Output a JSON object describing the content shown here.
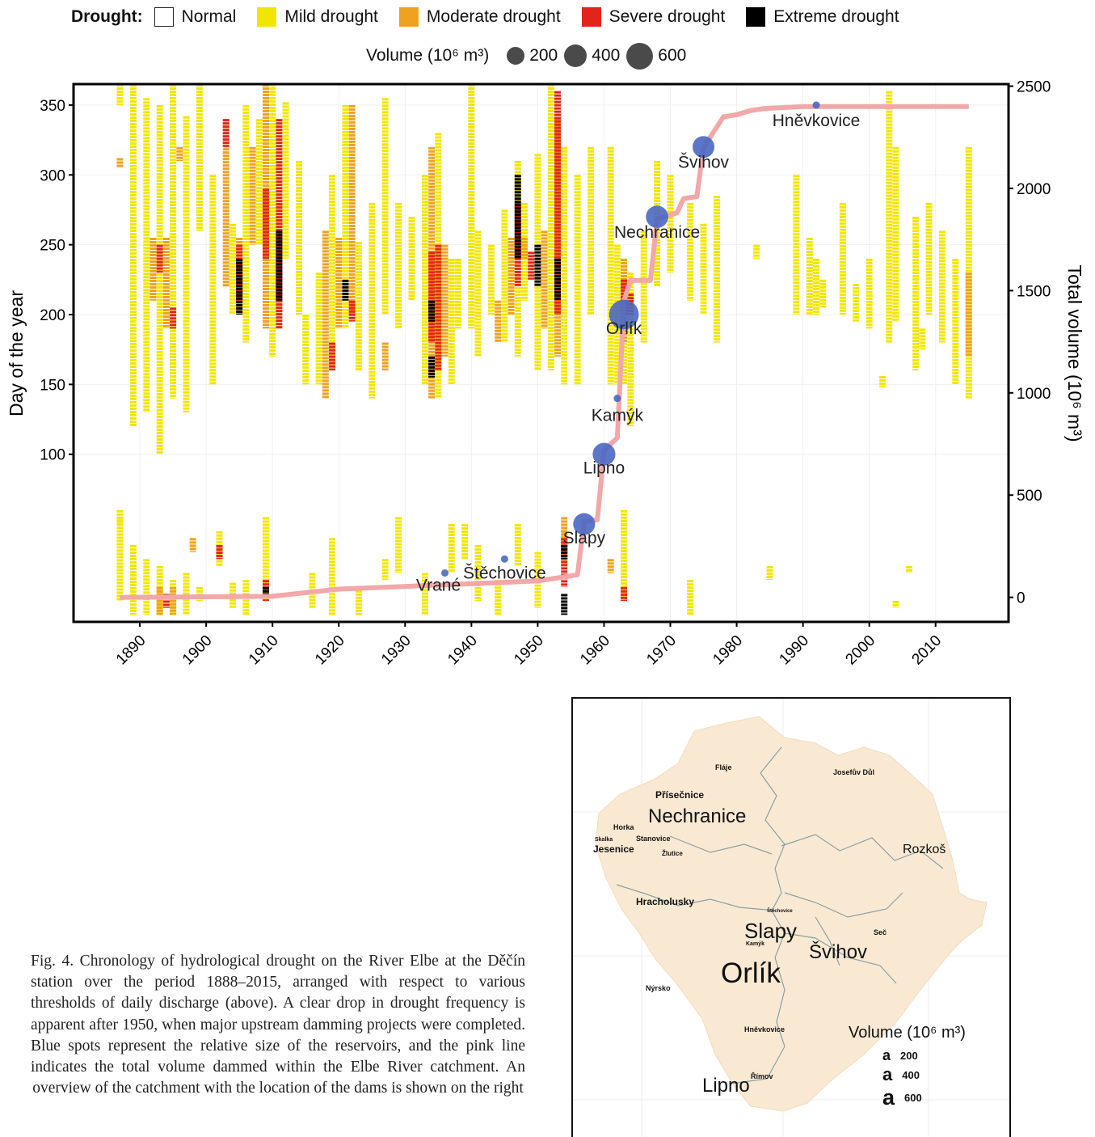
{
  "legend": {
    "title": "Drought:",
    "items": [
      {
        "label": "Normal",
        "color": "#ffffff"
      },
      {
        "label": "Mild drought",
        "color": "#f2e500"
      },
      {
        "label": "Moderate drought",
        "color": "#f0a11f"
      },
      {
        "label": "Severe drought",
        "color": "#e3241b"
      },
      {
        "label": "Extreme drought",
        "color": "#000000"
      }
    ],
    "volume_title": "Volume (10⁶ m³)",
    "volume_sizes": [
      "200",
      "400",
      "600"
    ]
  },
  "chart_data": {
    "type": "heatmap",
    "title": "",
    "xlabel": "",
    "ylabel": "Day of the year",
    "y2label": "Total volume (10⁶ m³)",
    "xlim": [
      1880,
      2021
    ],
    "ylim": [
      -20,
      365
    ],
    "y2lim": [
      -120,
      2510
    ],
    "x_ticks": [
      1890,
      1900,
      1910,
      1920,
      1930,
      1940,
      1950,
      1960,
      1970,
      1980,
      1990,
      2000,
      2010
    ],
    "y_ticks": [
      100,
      150,
      200,
      250,
      300,
      350
    ],
    "y2_ticks": [
      0,
      500,
      1000,
      1500,
      2000,
      2500
    ],
    "colors": {
      "mild": "#f2e500",
      "moderate": "#f0a11f",
      "severe": "#e3241b",
      "extreme": "#000000",
      "line": "#f2a7a8",
      "dam": "#4a67c2"
    },
    "drought_bars": [
      [
        1887,
        350,
        365,
        "mild"
      ],
      [
        1887,
        305,
        312,
        "moderate"
      ],
      [
        1887,
        50,
        60,
        "mild"
      ],
      [
        1889,
        120,
        365,
        "mild"
      ],
      [
        1891,
        130,
        355,
        "mild"
      ],
      [
        1893,
        100,
        350,
        "mild"
      ],
      [
        1895,
        140,
        365,
        "mild"
      ],
      [
        1897,
        130,
        342,
        "mild"
      ],
      [
        1899,
        260,
        365,
        "mild"
      ],
      [
        1901,
        150,
        300,
        "mild"
      ],
      [
        1904,
        200,
        265,
        "mild"
      ],
      [
        1906,
        180,
        350,
        "mild"
      ],
      [
        1908,
        250,
        340,
        "mild"
      ],
      [
        1910,
        170,
        365,
        "mild"
      ],
      [
        1912,
        240,
        352,
        "mild"
      ],
      [
        1914,
        200,
        310,
        "mild"
      ],
      [
        1915,
        150,
        200,
        "mild"
      ],
      [
        1917,
        150,
        230,
        "mild"
      ],
      [
        1919,
        160,
        300,
        "mild"
      ],
      [
        1921,
        190,
        350,
        "mild"
      ],
      [
        1923,
        160,
        252,
        "mild"
      ],
      [
        1925,
        140,
        280,
        "mild"
      ],
      [
        1927,
        200,
        355,
        "mild"
      ],
      [
        1929,
        190,
        280,
        "mild"
      ],
      [
        1931,
        210,
        270,
        "mild"
      ],
      [
        1933,
        150,
        300,
        "mild"
      ],
      [
        1935,
        140,
        330,
        "mild"
      ],
      [
        1937,
        150,
        240,
        "mild"
      ],
      [
        1938,
        190,
        240,
        "mild"
      ],
      [
        1940,
        190,
        365,
        "mild"
      ],
      [
        1941,
        170,
        260,
        "mild"
      ],
      [
        1943,
        200,
        250,
        "mild"
      ],
      [
        1945,
        180,
        275,
        "mild"
      ],
      [
        1947,
        170,
        310,
        "mild"
      ],
      [
        1948,
        210,
        280,
        "mild"
      ],
      [
        1950,
        160,
        315,
        "mild"
      ],
      [
        1952,
        160,
        365,
        "mild"
      ],
      [
        1954,
        150,
        320,
        "mild"
      ],
      [
        1956,
        150,
        300,
        "mild"
      ],
      [
        1958,
        200,
        320,
        "mild"
      ],
      [
        1961,
        150,
        320,
        "mild"
      ],
      [
        1962,
        150,
        250,
        "mild"
      ],
      [
        1963,
        150,
        240,
        "mild"
      ],
      [
        1964,
        120,
        230,
        "mild"
      ],
      [
        1966,
        180,
        260,
        "mild"
      ],
      [
        1968,
        220,
        310,
        "mild"
      ],
      [
        1970,
        230,
        300,
        "mild"
      ],
      [
        1973,
        210,
        280,
        "mild"
      ],
      [
        1975,
        200,
        265,
        "mild"
      ],
      [
        1977,
        180,
        285,
        "mild"
      ],
      [
        1983,
        240,
        250,
        "mild"
      ],
      [
        1989,
        200,
        300,
        "mild"
      ],
      [
        1991,
        200,
        255,
        "mild"
      ],
      [
        1992,
        200,
        240,
        "mild"
      ],
      [
        1993,
        205,
        225,
        "mild"
      ],
      [
        1996,
        200,
        280,
        "mild"
      ],
      [
        1998,
        195,
        222,
        "mild"
      ],
      [
        2000,
        190,
        240,
        "mild"
      ],
      [
        2003,
        180,
        360,
        "mild"
      ],
      [
        2004,
        195,
        320,
        "mild"
      ],
      [
        2007,
        160,
        270,
        "mild"
      ],
      [
        2009,
        200,
        280,
        "mild"
      ],
      [
        2011,
        180,
        260,
        "mild"
      ],
      [
        2013,
        150,
        240,
        "mild"
      ],
      [
        2015,
        140,
        320,
        "mild"
      ],
      [
        2002,
        148,
        156,
        "mild"
      ],
      [
        2008,
        175,
        190,
        "mild"
      ],
      [
        1892,
        210,
        255,
        "moderate"
      ],
      [
        1894,
        190,
        255,
        "moderate"
      ],
      [
        1896,
        310,
        320,
        "moderate"
      ],
      [
        1903,
        220,
        340,
        "moderate"
      ],
      [
        1905,
        200,
        255,
        "moderate"
      ],
      [
        1907,
        250,
        320,
        "moderate"
      ],
      [
        1909,
        190,
        365,
        "moderate"
      ],
      [
        1911,
        200,
        280,
        "moderate"
      ],
      [
        1918,
        140,
        260,
        "moderate"
      ],
      [
        1920,
        190,
        255,
        "moderate"
      ],
      [
        1922,
        200,
        350,
        "moderate"
      ],
      [
        1927,
        160,
        180,
        "moderate"
      ],
      [
        1934,
        140,
        320,
        "moderate"
      ],
      [
        1936,
        170,
        250,
        "moderate"
      ],
      [
        1944,
        180,
        210,
        "moderate"
      ],
      [
        1946,
        200,
        255,
        "moderate"
      ],
      [
        1948,
        240,
        255,
        "moderate"
      ],
      [
        1951,
        190,
        260,
        "moderate"
      ],
      [
        1953,
        170,
        340,
        "moderate"
      ],
      [
        1963,
        180,
        240,
        "moderate"
      ],
      [
        2015,
        170,
        230,
        "moderate"
      ],
      [
        1893,
        230,
        250,
        "severe"
      ],
      [
        1895,
        190,
        205,
        "severe"
      ],
      [
        1903,
        320,
        340,
        "severe"
      ],
      [
        1905,
        210,
        250,
        "severe"
      ],
      [
        1909,
        240,
        290,
        "severe"
      ],
      [
        1911,
        190,
        340,
        "severe"
      ],
      [
        1919,
        160,
        180,
        "severe"
      ],
      [
        1922,
        195,
        210,
        "severe"
      ],
      [
        1934,
        180,
        245,
        "severe"
      ],
      [
        1935,
        160,
        250,
        "severe"
      ],
      [
        1947,
        220,
        280,
        "severe"
      ],
      [
        1949,
        225,
        245,
        "severe"
      ],
      [
        1953,
        200,
        360,
        "severe"
      ],
      [
        1963,
        200,
        225,
        "severe"
      ],
      [
        1964,
        200,
        215,
        "severe"
      ],
      [
        1905,
        200,
        240,
        "extreme"
      ],
      [
        1911,
        210,
        260,
        "extreme"
      ],
      [
        1921,
        210,
        225,
        "extreme"
      ],
      [
        1934,
        195,
        210,
        "extreme"
      ],
      [
        1934,
        155,
        170,
        "extreme"
      ],
      [
        1947,
        240,
        300,
        "extreme"
      ],
      [
        1950,
        220,
        250,
        "extreme"
      ],
      [
        1953,
        210,
        240,
        "extreme"
      ],
      [
        1887,
        -5,
        55,
        "mild"
      ],
      [
        1889,
        -15,
        35,
        "mild"
      ],
      [
        1891,
        -15,
        25,
        "mild"
      ],
      [
        1893,
        -15,
        20,
        "mild"
      ],
      [
        1895,
        -15,
        10,
        "mild"
      ],
      [
        1897,
        -15,
        15,
        "mild"
      ],
      [
        1899,
        -5,
        5,
        "mild"
      ],
      [
        1902,
        20,
        45,
        "mild"
      ],
      [
        1904,
        -10,
        8,
        "mild"
      ],
      [
        1906,
        -15,
        10,
        "mild"
      ],
      [
        1909,
        -5,
        55,
        "mild"
      ],
      [
        1916,
        -10,
        15,
        "mild"
      ],
      [
        1919,
        -15,
        40,
        "mild"
      ],
      [
        1923,
        -15,
        5,
        "mild"
      ],
      [
        1927,
        10,
        25,
        "mild"
      ],
      [
        1929,
        15,
        55,
        "mild"
      ],
      [
        1933,
        -15,
        15,
        "mild"
      ],
      [
        1937,
        15,
        50,
        "mild"
      ],
      [
        1939,
        25,
        50,
        "mild"
      ],
      [
        1941,
        -5,
        35,
        "mild"
      ],
      [
        1944,
        -15,
        10,
        "mild"
      ],
      [
        1947,
        20,
        50,
        "mild"
      ],
      [
        1950,
        -10,
        30,
        "mild"
      ],
      [
        1954,
        20,
        45,
        "mild"
      ],
      [
        1963,
        -5,
        50,
        "mild"
      ],
      [
        1973,
        -15,
        10,
        "mild"
      ],
      [
        1985,
        10,
        20,
        "mild"
      ],
      [
        2004,
        -10,
        -5,
        "mild"
      ],
      [
        2006,
        15,
        20,
        "mild"
      ],
      [
        1963,
        50,
        60,
        "mild"
      ],
      [
        1954,
        35,
        55,
        "moderate"
      ],
      [
        1961,
        15,
        25,
        "moderate"
      ],
      [
        1893,
        -15,
        5,
        "moderate"
      ],
      [
        1895,
        -15,
        5,
        "moderate"
      ],
      [
        1898,
        30,
        40,
        "moderate"
      ],
      [
        1902,
        25,
        35,
        "severe"
      ],
      [
        1909,
        -5,
        10,
        "severe"
      ],
      [
        1954,
        5,
        40,
        "severe"
      ],
      [
        1963,
        -5,
        5,
        "severe"
      ],
      [
        1894,
        -10,
        0,
        "severe"
      ],
      [
        1909,
        -3,
        5,
        "extreme"
      ],
      [
        1954,
        -15,
        0,
        "extreme"
      ],
      [
        1954,
        25,
        35,
        "extreme"
      ]
    ],
    "cumulative_volume": [
      [
        1887,
        0
      ],
      [
        1910,
        5
      ],
      [
        1920,
        40
      ],
      [
        1935,
        60
      ],
      [
        1950,
        80
      ],
      [
        1954,
        100
      ],
      [
        1956,
        110
      ],
      [
        1957,
        370
      ],
      [
        1959,
        380
      ],
      [
        1960,
        720
      ],
      [
        1962,
        780
      ],
      [
        1963,
        1450
      ],
      [
        1964,
        1550
      ],
      [
        1967,
        1550
      ],
      [
        1968,
        1850
      ],
      [
        1971,
        1880
      ],
      [
        1972,
        1950
      ],
      [
        1974,
        1960
      ],
      [
        1975,
        2200
      ],
      [
        1976,
        2250
      ],
      [
        1978,
        2350
      ],
      [
        1980,
        2360
      ],
      [
        1982,
        2380
      ],
      [
        1984,
        2390
      ],
      [
        1990,
        2400
      ],
      [
        1991,
        2400
      ],
      [
        2015,
        2400
      ]
    ],
    "dams": [
      {
        "name": "Vrané",
        "year": 1936,
        "volume": 10,
        "day": 15
      },
      {
        "name": "Štěchovice",
        "year": 1945,
        "volume": 10,
        "day": 25
      },
      {
        "name": "Slapy",
        "year": 1957,
        "volume": 270,
        "day": 50
      },
      {
        "name": "Lipno",
        "year": 1960,
        "volume": 306,
        "day": 100
      },
      {
        "name": "Kamýk",
        "year": 1962,
        "volume": 13,
        "day": 140
      },
      {
        "name": "Orlík",
        "year": 1963,
        "volume": 720,
        "day": 200
      },
      {
        "name": "Nechranice",
        "year": 1968,
        "volume": 288,
        "day": 270
      },
      {
        "name": "Švihov",
        "year": 1975,
        "volume": 267,
        "day": 320
      },
      {
        "name": "Hněvkovice",
        "year": 1992,
        "volume": 21,
        "day": 350
      }
    ]
  },
  "caption": "Fig. 4. Chronology of hydrological drought on the River Elbe at the Děčín station over the period 1888–2015, arranged with respect to various thresholds of daily discharge (above). A clear drop in drought frequency is apparent after 1950, when major upstream damming projects were completed. Blue spots represent the relative size of the reservoirs, and the pink line indicates the total volume dammed within the Elbe River catchment. An overview of the catchment with the location of the dams is shown on the right",
  "map": {
    "labels": {
      "flaje": "Fláje",
      "josefuv_dul": "Josefův Důl",
      "prisecnice": "Přísečnice",
      "nechranice": "Nechranice",
      "horka": "Horka",
      "skalka": "Skalka",
      "jesenice": "Jesenice",
      "stanovice": "Stanovice",
      "zlutice": "Žlutice",
      "rozkos": "Rozkoš",
      "hracholusky": "Hracholusky",
      "stechovice": "Štěchovice",
      "slapy": "Slapy",
      "kamyk": "Kamýk",
      "svihov": "Švihov",
      "sec": "Seč",
      "orlik": "Orlík",
      "nyrsko": "Nýrsko",
      "hnevkovice": "Hněvkovice",
      "rimov": "Římov",
      "lipno": "Lipno"
    },
    "legend_title": "Volume (10⁶ m³)",
    "legend_glyph": "a",
    "legend_values": [
      "200",
      "400",
      "600"
    ]
  }
}
